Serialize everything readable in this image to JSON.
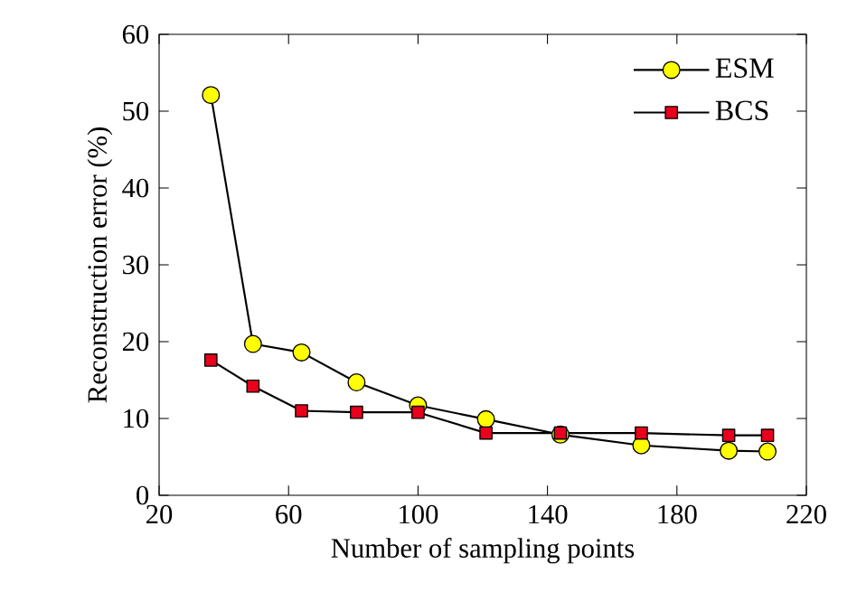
{
  "chart_data": {
    "type": "line",
    "xlabel": "Number of sampling points",
    "ylabel": "Reconstruction error (%)",
    "x": [
      36,
      49,
      64,
      81,
      100,
      121,
      144,
      169,
      196,
      208
    ],
    "series": [
      {
        "name": "ESM",
        "color": "#ffff00",
        "marker": "circle",
        "values": [
          52.1,
          19.7,
          18.6,
          14.7,
          11.7,
          9.9,
          7.9,
          6.5,
          5.8,
          5.7
        ]
      },
      {
        "name": "BCS",
        "color": "#e8001c",
        "marker": "square",
        "values": [
          17.6,
          14.2,
          11.0,
          10.8,
          10.8,
          8.1,
          8.1,
          8.1,
          7.8,
          7.8
        ]
      }
    ],
    "xlim": [
      20,
      220
    ],
    "xticks": [
      20,
      60,
      100,
      140,
      180,
      220
    ],
    "ylim": [
      0,
      60
    ],
    "yticks": [
      0,
      10,
      20,
      30,
      40,
      50,
      60
    ],
    "grid": false,
    "legend": "top right",
    "line_style": "solid"
  }
}
